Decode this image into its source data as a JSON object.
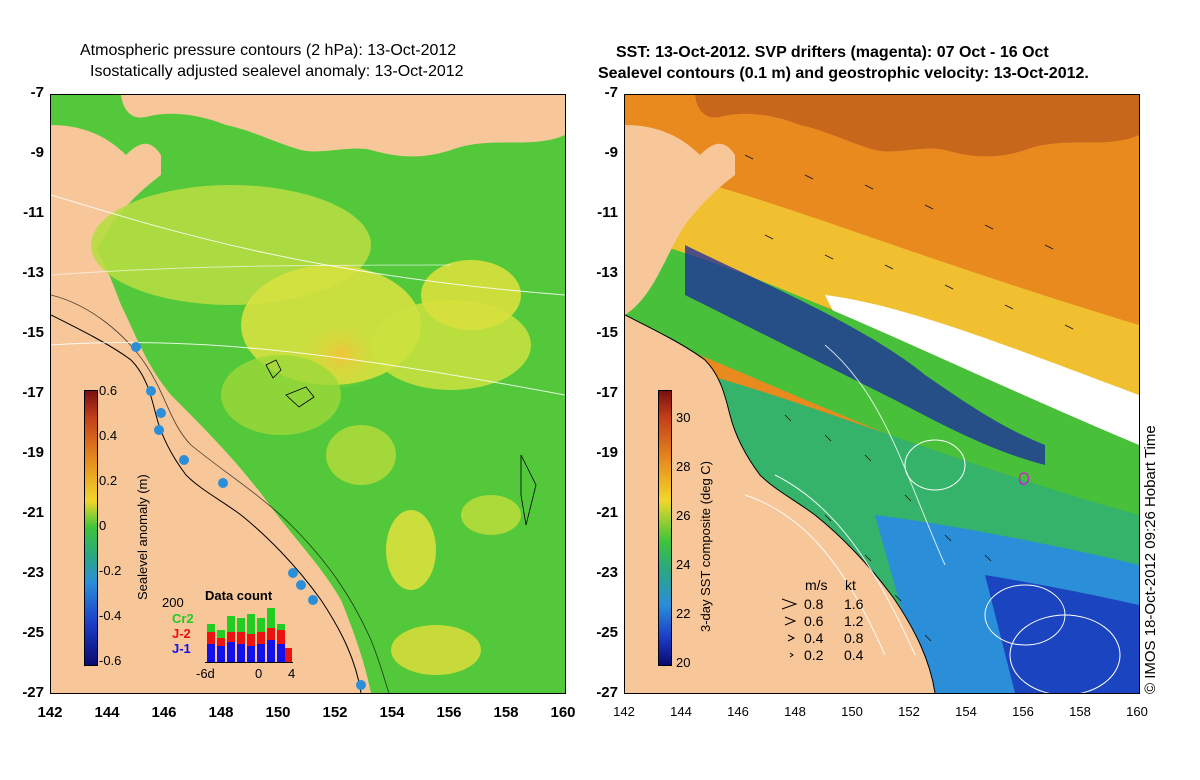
{
  "left": {
    "title_line1": "Atmospheric pressure contours (2 hPa): 13-Oct-2012",
    "title_line2": "Isostatically adjusted sealevel anomaly: 13-Oct-2012",
    "y_ticks": [
      "-7",
      "-9",
      "-11",
      "-13",
      "-15",
      "-17",
      "-19",
      "-21",
      "-23",
      "-25",
      "-27"
    ],
    "x_ticks": [
      "142",
      "144",
      "146",
      "148",
      "150",
      "152",
      "154",
      "156",
      "158",
      "160"
    ],
    "colorbar": {
      "label": "Sealevel anomaly (m)",
      "ticks": [
        "0.6",
        "0.4",
        "0.2",
        "0",
        "-0.2",
        "-0.4",
        "-0.6"
      ],
      "range": [
        -0.6,
        0.6
      ]
    },
    "data_count": {
      "title": "Data count",
      "max_label": "200",
      "series_labels": [
        "Cr2",
        "J-2",
        "J-1"
      ],
      "series_colors": [
        "#22cc22",
        "#ee1111",
        "#1111ee"
      ],
      "x_tick_labels": [
        "-6d",
        "0",
        "4"
      ]
    }
  },
  "right": {
    "title_line1": "SST: 13-Oct-2012. SVP drifters (magenta): 07 Oct - 16 Oct",
    "title_line2": "Sealevel contours (0.1 m) and geostrophic velocity: 13-Oct-2012.",
    "y_ticks": [
      "-7",
      "-9",
      "-11",
      "-13",
      "-15",
      "-17",
      "-19",
      "-21",
      "-23",
      "-25",
      "-27"
    ],
    "x_ticks": [
      "142",
      "144",
      "146",
      "148",
      "150",
      "152",
      "154",
      "156",
      "158",
      "160"
    ],
    "colorbar": {
      "label": "3-day SST composite (deg C)",
      "ticks": [
        "30",
        "28",
        "26",
        "24",
        "22",
        "20"
      ],
      "range": [
        20,
        31
      ]
    },
    "velocity_legend": {
      "header_ms": "m/s",
      "header_kt": "kt",
      "rows": [
        {
          "ms": "0.8",
          "kt": "1.6"
        },
        {
          "ms": "0.6",
          "kt": "1.2"
        },
        {
          "ms": "0.4",
          "kt": "0.8"
        },
        {
          "ms": "0.2",
          "kt": "0.4"
        }
      ]
    },
    "credit": "© IMOS 18-Oct-2012 09:26 Hobart Time"
  }
}
